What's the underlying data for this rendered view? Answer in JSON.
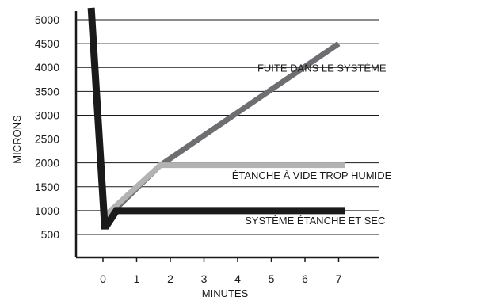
{
  "chart_data": {
    "type": "line",
    "title": "",
    "xlabel": "MINUTES",
    "ylabel": "MICRONS",
    "xlim": [
      -0.8,
      7.8
    ],
    "ylim": [
      0,
      5150
    ],
    "x_ticks": [
      0,
      1,
      2,
      3,
      4,
      5,
      6,
      7
    ],
    "y_ticks": [
      500,
      1000,
      1500,
      2000,
      2500,
      3000,
      3500,
      4000,
      4500,
      5000
    ],
    "grid": "horizontal",
    "legend": "none",
    "series": [
      {
        "name": "FUITE DANS LE SYSTÈME",
        "color": "#6d6e71",
        "x": [
          0.0,
          0.25,
          1.7,
          7.0
        ],
        "y": [
          650,
          950,
          1950,
          4500
        ]
      },
      {
        "name": "ÉTANCHE À VIDE TROP HUMIDE",
        "color": "#b3b3b3",
        "x": [
          0.0,
          0.15,
          1.7,
          7.2
        ],
        "y": [
          650,
          950,
          1950,
          1950
        ]
      },
      {
        "name": "SYSTÈME ÉTANCHE ET SEC",
        "color": "#1a1a1a",
        "x": [
          -0.35,
          0.05,
          0.1,
          0.4,
          7.2
        ],
        "y": [
          5250,
          680,
          680,
          1000,
          1000
        ]
      }
    ],
    "annotations": [
      {
        "text": "FUITE DANS LE SYSTÈME",
        "x": 6.5,
        "y": 3750,
        "line_from_x": 4.6
      },
      {
        "text": "ÉTANCHE À VIDE TROP HUMIDE",
        "x": 6.2,
        "y": 1500,
        "line_from_x": 4.6
      },
      {
        "text": "SYSTÈME ÉTANCHE ET SEC",
        "x": 6.3,
        "y": 550,
        "line_from_x": 4.6
      }
    ]
  }
}
